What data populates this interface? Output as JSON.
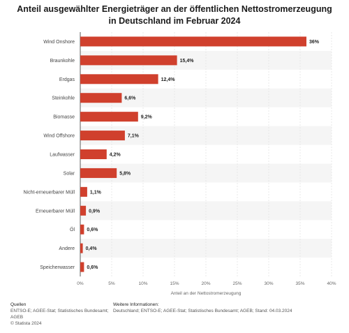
{
  "title": "Anteil ausgewählter Energieträger an der öffentlichen Nettostromerzeugung in Deutschland im Februar 2024",
  "chart_data": {
    "type": "bar",
    "orientation": "horizontal",
    "categories": [
      "Wind Onshore",
      "Braunkohle",
      "Erdgas",
      "Steinkohle",
      "Biomasse",
      "Wind Offshore",
      "Laufwasser",
      "Solar",
      "Nicht-erneuerbarer Müll",
      "Erneuerbarer Müll",
      "Öl",
      "Andere",
      "Speicherwasser"
    ],
    "values": [
      36,
      15.4,
      12.4,
      6.6,
      9.2,
      7.1,
      4.2,
      5.8,
      1.1,
      0.9,
      0.6,
      0.4,
      0.6
    ],
    "value_labels": [
      "36%",
      "15,4%",
      "12,4%",
      "6,6%",
      "9,2%",
      "7,1%",
      "4,2%",
      "5,8%",
      "1,1%",
      "0,9%",
      "0,6%",
      "0,4%",
      "0,6%"
    ],
    "xlabel": "Anteil an der Nettostromerzeugung",
    "xlim": [
      0,
      40
    ],
    "xticks": [
      0,
      5,
      10,
      15,
      20,
      25,
      30,
      35,
      40
    ],
    "xtick_labels": [
      "0%",
      "5%",
      "10%",
      "15%",
      "20%",
      "25%",
      "30%",
      "35%",
      "40%"
    ],
    "grid": true,
    "bar_color": "#d0402d"
  },
  "footer": {
    "sources_label": "Quellen",
    "sources_text": "ENTSO-E; AGEE-Stat; Statistisches Bundesamt; AGEB",
    "copyright": "© Statista 2024",
    "info_label": "Weitere Informationen:",
    "info_text": "Deutschland; ENTSO-E; AGEE-Stat; Statistisches Bundesamt; AGEB; Stand: 04.03.2024"
  }
}
